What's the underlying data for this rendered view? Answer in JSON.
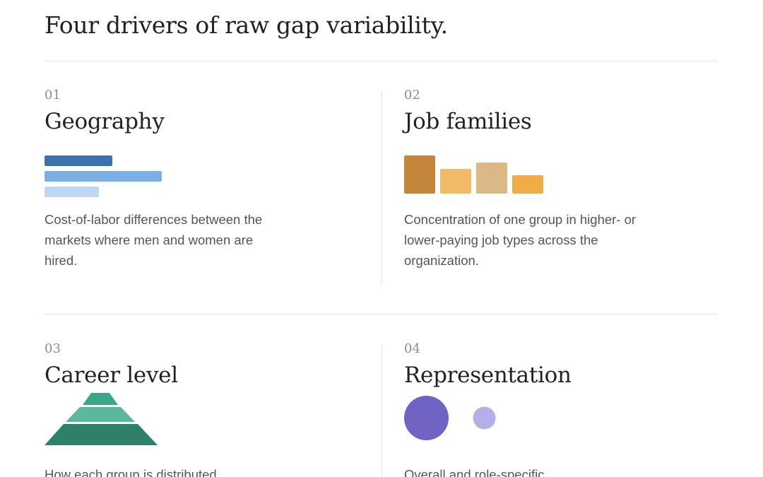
{
  "page": {
    "title": "Four drivers of raw gap variability."
  },
  "drivers": [
    {
      "number": "01",
      "heading": "Geography",
      "description": "Cost-of-labor differences between the markets where men and women are hired.",
      "graphic": {
        "type": "horizontal-bars",
        "values": [
          0.57,
          1.0,
          0.46
        ],
        "colors": [
          "#3a72b0",
          "#7bb0e6",
          "#bdd8f2"
        ]
      }
    },
    {
      "number": "02",
      "heading": "Job families",
      "description": "Concentration of one group in higher- or lower-paying job types across the organization.",
      "graphic": {
        "type": "vertical-bars",
        "values": [
          1.0,
          0.65,
          0.82,
          0.48
        ],
        "colors": [
          "#c4863a",
          "#f2b966",
          "#dcb887",
          "#f0ab47"
        ]
      }
    },
    {
      "number": "03",
      "heading": "Career level",
      "description": "How each group is distributed",
      "graphic": {
        "type": "pyramid",
        "levels": 3,
        "colors": [
          "#3aa78a",
          "#5cb89c",
          "#2f8068"
        ]
      }
    },
    {
      "number": "04",
      "heading": "Representation",
      "description": "Overall and role-specific",
      "graphic": {
        "type": "circles",
        "values": [
          1.0,
          0.25
        ],
        "colors": [
          "#6f63c4",
          "#b4afe9"
        ]
      }
    }
  ]
}
